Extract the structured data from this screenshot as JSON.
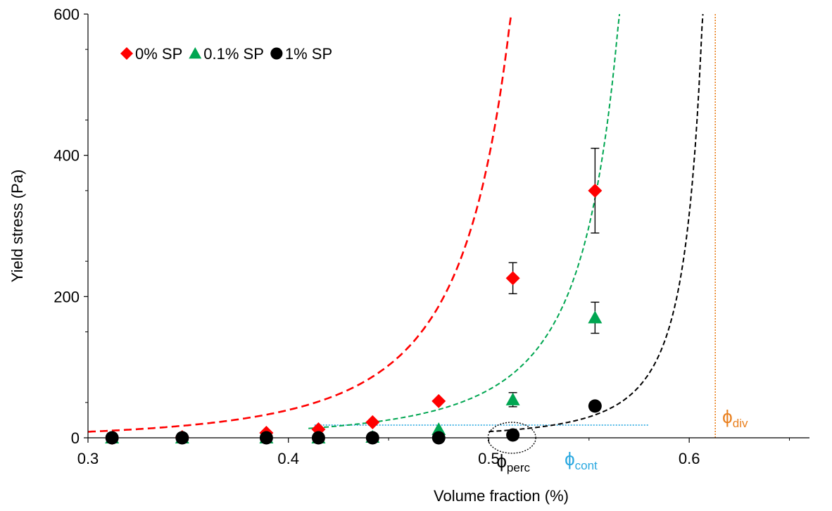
{
  "chart_data": {
    "type": "scatter",
    "xlabel": "Volume fraction (%)",
    "ylabel": "Yield stress (Pa)",
    "xlim": [
      0.3,
      0.66
    ],
    "ylim": [
      0,
      600
    ],
    "x_ticks": [
      0.3,
      0.4,
      0.5,
      0.6
    ],
    "x_tick_labels": [
      "0.3",
      "0.4",
      "0.5",
      "0.6"
    ],
    "y_ticks": [
      0,
      200,
      400,
      600
    ],
    "y_tick_labels": [
      "0",
      "200",
      "400",
      "600"
    ],
    "legend_position": "top-left",
    "series": [
      {
        "name": "0% SP",
        "marker": "diamond",
        "color": "#ff0000",
        "x": [
          0.312,
          0.347,
          0.389,
          0.415,
          0.442,
          0.475,
          0.512,
          0.553
        ],
        "y": [
          0,
          1,
          7,
          12,
          22,
          52,
          226,
          350
        ],
        "error": [
          null,
          null,
          null,
          null,
          null,
          null,
          22,
          60
        ]
      },
      {
        "name": "0.1% SP",
        "marker": "triangle",
        "color": "#00a651",
        "x": [
          0.312,
          0.347,
          0.389,
          0.415,
          0.442,
          0.475,
          0.512,
          0.553
        ],
        "y": [
          0,
          0,
          0,
          0,
          1,
          12,
          54,
          170
        ],
        "error": [
          null,
          null,
          null,
          null,
          null,
          null,
          10,
          22
        ]
      },
      {
        "name": "1% SP",
        "marker": "circle",
        "color": "#000000",
        "x": [
          0.312,
          0.347,
          0.389,
          0.415,
          0.442,
          0.475,
          0.512,
          0.553
        ],
        "y": [
          0,
          0,
          0,
          0,
          0,
          0,
          4,
          45
        ],
        "error": [
          null,
          null,
          null,
          null,
          null,
          null,
          null,
          null
        ]
      }
    ],
    "fits": [
      {
        "series": "0% SP",
        "color": "#ff0000",
        "style": "dashed",
        "x_start": 0.3,
        "phi_max": 0.565,
        "scale": 6.7,
        "exponent": 2
      },
      {
        "series": "0.1% SP",
        "color": "#00a651",
        "style": "dashed",
        "x_start": 0.41,
        "phi_max": 0.605,
        "scale": 3.0,
        "exponent": 2
      },
      {
        "series": "1% SP",
        "color": "#000000",
        "style": "dashed",
        "x_start": 0.5,
        "phi_max": 0.625,
        "scale": 0.55,
        "exponent": 2
      }
    ],
    "reference_lines": [
      {
        "orientation": "horizontal",
        "y": 18,
        "x_range": [
          0.413,
          0.58
        ],
        "color": "#29a8e0",
        "style": "dotted"
      },
      {
        "orientation": "vertical",
        "x": 0.613,
        "color": "#e97f1d",
        "style": "dotted"
      }
    ],
    "annotations": [
      {
        "symbol": "ϕ",
        "subscript": "perc",
        "x": 0.5115,
        "y": 0,
        "color": "#000000",
        "ellipse": true
      },
      {
        "symbol": "ϕ",
        "subscript": "cont",
        "x": 0.546,
        "y": 0,
        "color": "#29a8e0",
        "ellipse": false
      },
      {
        "symbol": "ϕ",
        "subscript": "div",
        "x": 0.613,
        "y": 0,
        "color": "#e97f1d",
        "ellipse": false
      }
    ]
  }
}
